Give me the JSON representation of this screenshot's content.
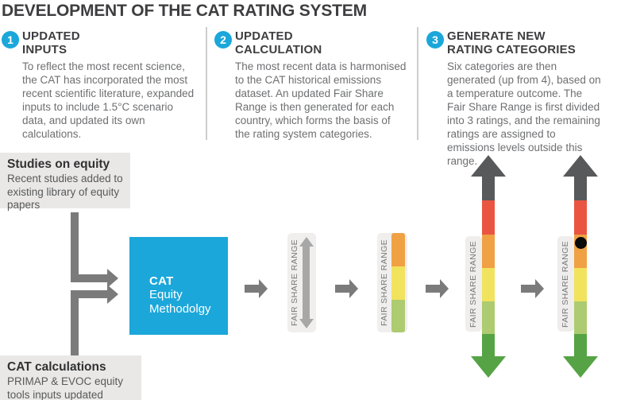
{
  "title": "DEVELOPMENT OF THE CAT RATING SYSTEM",
  "steps": [
    {
      "number": "1",
      "heading": "UPDATED\nINPUTS",
      "body": "To reflect the most recent science, the CAT has incorporated the most recent scientific literature, expanded inputs to include 1.5°C scenario data, and updated its own calculations."
    },
    {
      "number": "2",
      "heading": "UPDATED\nCALCULATION",
      "body": "The most recent data is harmonised to the CAT historical emissions dataset. An updated Fair Share Range is then generated for each country, which forms the basis of the rating system categories."
    },
    {
      "number": "3",
      "heading": "GENERATE NEW\nRATING CATEGORIES",
      "body": "Six categories are then generated (up from 4), based on a temperature outcome. The Fair Share Range is first divided into 3 ratings, and the remaining ratings are assigned to emissions levels outside this range."
    }
  ],
  "flow": {
    "studies_box": {
      "title": "Studies on equity",
      "body": "Recent studies added to existing library of equity papers"
    },
    "calculations_box": {
      "title": "CAT calculations",
      "body": "PRIMAP & EVOC equity tools inputs updated"
    },
    "cat_box": {
      "title": "CAT",
      "subtitle": "Equity\nMethodolgy"
    },
    "fair_share_label": "FAIR SHARE RANGE"
  },
  "colors": {
    "accent_blue": "#1ba7da",
    "heading_text": "#3e3e40",
    "body_text": "#6e6f71",
    "gray_box_bg": "#e9e8e6",
    "range_box_bg": "#f0efed",
    "flow_arrow_gray": "#7b7b7b",
    "range_arrow_gray": "#a7a7a7",
    "rating_dark_gray": "#58595b",
    "rating_red": "#ea5541",
    "rating_orange": "#f0a144",
    "rating_yellow": "#f1e35e",
    "rating_light_green": "#adcb70",
    "rating_green": "#55a345",
    "dot_black": "#0a0a0a"
  }
}
